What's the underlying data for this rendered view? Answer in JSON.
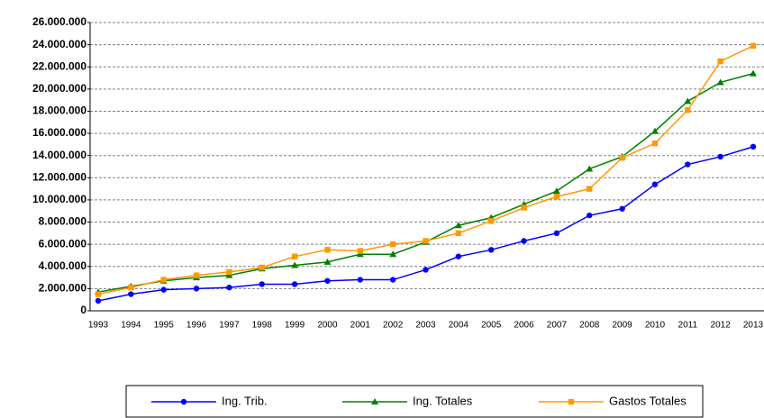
{
  "chart_data": {
    "type": "line",
    "categories": [
      "1993",
      "1994",
      "1995",
      "1996",
      "1997",
      "1998",
      "1999",
      "2000",
      "2001",
      "2002",
      "2003",
      "2004",
      "2005",
      "2006",
      "2007",
      "2008",
      "2009",
      "2010",
      "2011",
      "2012",
      "2013"
    ],
    "series": [
      {
        "name": "Ing. Trib.",
        "color": "#0000ff",
        "values": [
          900000,
          1500000,
          1900000,
          2000000,
          2100000,
          2400000,
          2400000,
          2700000,
          2800000,
          2800000,
          3700000,
          4900000,
          5500000,
          6300000,
          7000000,
          8600000,
          9200000,
          11400000,
          13200000,
          13900000,
          14800000
        ]
      },
      {
        "name": "Ing. Totales",
        "color": "#008000",
        "values": [
          1700000,
          2200000,
          2700000,
          3000000,
          3200000,
          3800000,
          4100000,
          4400000,
          5100000,
          5100000,
          6200000,
          7700000,
          8400000,
          9600000,
          10800000,
          12800000,
          13900000,
          16200000,
          18900000,
          20600000,
          21400000
        ]
      },
      {
        "name": "Gastos Totales",
        "color": "#ff9900",
        "values": [
          1500000,
          2100000,
          2800000,
          3200000,
          3500000,
          3900000,
          4900000,
          5500000,
          5400000,
          6000000,
          6300000,
          7000000,
          8100000,
          9300000,
          10300000,
          11000000,
          13800000,
          15100000,
          18100000,
          22500000,
          23900000
        ]
      }
    ],
    "ylim": [
      0,
      26000000
    ],
    "yticks": [
      0,
      {
        "value": 2000000,
        "label": "2.000.000"
      },
      {
        "value": 4000000,
        "label": "4.000.000"
      },
      {
        "value": 6000000,
        "label": "6.000.000"
      },
      {
        "value": 8000000,
        "label": "8.000.000"
      },
      {
        "value": 10000000,
        "label": "10.000.000"
      },
      {
        "value": 12000000,
        "label": "12.000.000"
      },
      {
        "value": 14000000,
        "label": "14.000.000"
      },
      {
        "value": 16000000,
        "label": "16.000.000"
      },
      {
        "value": 18000000,
        "label": "18.000.000"
      },
      {
        "value": 20000000,
        "label": "20.000.000"
      },
      {
        "value": 22000000,
        "label": "22.000.000"
      },
      {
        "value": 24000000,
        "label": "24.000.000"
      },
      {
        "value": 26000000,
        "label": "26.000.000"
      }
    ],
    "grid": true
  }
}
